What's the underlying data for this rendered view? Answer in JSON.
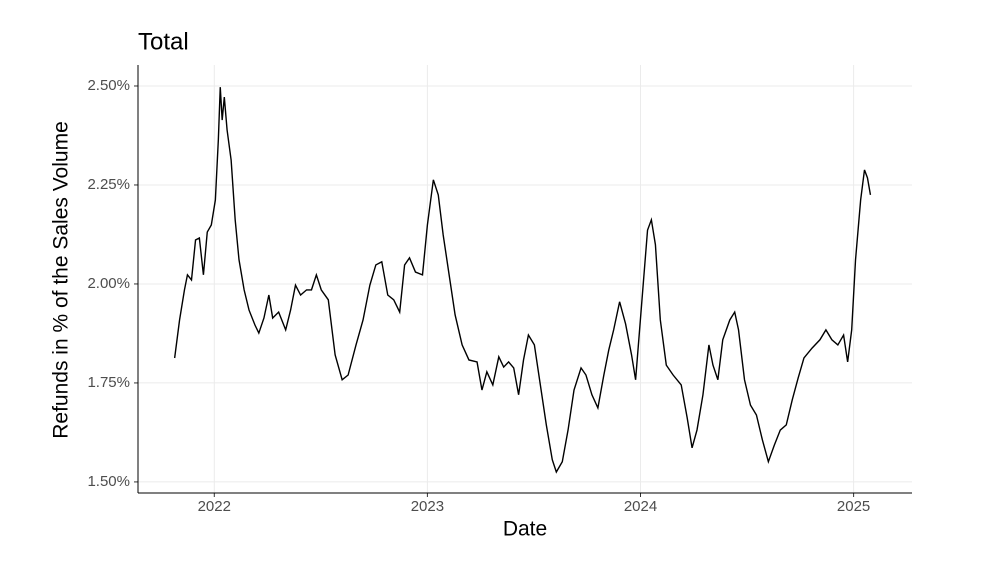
{
  "chart_data": {
    "type": "line",
    "title": "Total",
    "x_label": "Date",
    "y_label": "Refunds in % of the Sales Volume",
    "x": [
      2021.814,
      2021.837,
      2021.86,
      2021.874,
      2021.893,
      2021.912,
      2021.93,
      2021.949,
      2021.967,
      2021.986,
      2022.005,
      2022.019,
      2022.028,
      2022.037,
      2022.047,
      2022.06,
      2022.079,
      2022.098,
      2022.116,
      2022.14,
      2022.163,
      2022.191,
      2022.209,
      2022.233,
      2022.256,
      2022.274,
      2022.302,
      2022.335,
      2022.358,
      2022.381,
      2022.405,
      2022.433,
      2022.456,
      2022.479,
      2022.502,
      2022.535,
      2022.567,
      2022.6,
      2022.628,
      2022.665,
      2022.698,
      2022.73,
      2022.758,
      2022.786,
      2022.814,
      2022.842,
      2022.87,
      2022.893,
      2022.916,
      2022.944,
      2022.977,
      2023.0,
      2023.028,
      2023.051,
      2023.074,
      2023.102,
      2023.13,
      2023.163,
      2023.195,
      2023.233,
      2023.256,
      2023.279,
      2023.307,
      2023.335,
      2023.358,
      2023.381,
      2023.405,
      2023.428,
      2023.451,
      2023.474,
      2023.502,
      2023.53,
      2023.558,
      2023.586,
      2023.605,
      2023.633,
      2023.66,
      2023.688,
      2023.721,
      2023.744,
      2023.772,
      2023.8,
      2023.828,
      2023.851,
      2023.874,
      2023.902,
      2023.93,
      2023.958,
      2023.977,
      2024.005,
      2024.033,
      2024.051,
      2024.07,
      2024.093,
      2024.121,
      2024.153,
      2024.191,
      2024.219,
      2024.242,
      2024.265,
      2024.293,
      2024.321,
      2024.34,
      2024.363,
      2024.386,
      2024.419,
      2024.442,
      2024.46,
      2024.488,
      2024.516,
      2024.544,
      2024.572,
      2024.6,
      2024.628,
      2024.656,
      2024.684,
      2024.712,
      2024.74,
      2024.767,
      2024.805,
      2024.842,
      2024.87,
      2024.898,
      2024.926,
      2024.953,
      2024.972,
      2024.991,
      2025.009,
      2025.033,
      2025.051,
      2025.065,
      2025.079
    ],
    "series": [
      {
        "name": "Total",
        "color": "#000000",
        "values": [
          1.813,
          1.909,
          1.985,
          2.023,
          2.01,
          2.111,
          2.116,
          2.023,
          2.131,
          2.149,
          2.212,
          2.364,
          2.497,
          2.414,
          2.472,
          2.389,
          2.313,
          2.162,
          2.061,
          1.985,
          1.934,
          1.896,
          1.876,
          1.914,
          1.972,
          1.914,
          1.929,
          1.884,
          1.934,
          1.997,
          1.972,
          1.985,
          1.985,
          2.023,
          1.985,
          1.96,
          1.821,
          1.758,
          1.77,
          1.846,
          1.909,
          1.997,
          2.048,
          2.056,
          1.972,
          1.96,
          1.929,
          2.048,
          2.066,
          2.03,
          2.023,
          2.149,
          2.263,
          2.225,
          2.124,
          2.023,
          1.922,
          1.846,
          1.808,
          1.803,
          1.732,
          1.778,
          1.745,
          1.816,
          1.79,
          1.803,
          1.788,
          1.72,
          1.808,
          1.871,
          1.846,
          1.745,
          1.644,
          1.556,
          1.525,
          1.551,
          1.631,
          1.732,
          1.788,
          1.77,
          1.72,
          1.687,
          1.77,
          1.833,
          1.884,
          1.955,
          1.899,
          1.821,
          1.758,
          1.947,
          2.136,
          2.162,
          2.099,
          1.909,
          1.795,
          1.77,
          1.745,
          1.662,
          1.586,
          1.631,
          1.72,
          1.846,
          1.795,
          1.758,
          1.859,
          1.909,
          1.929,
          1.884,
          1.758,
          1.694,
          1.669,
          1.606,
          1.551,
          1.593,
          1.631,
          1.644,
          1.707,
          1.763,
          1.813,
          1.838,
          1.859,
          1.884,
          1.859,
          1.846,
          1.871,
          1.803,
          1.884,
          2.061,
          2.212,
          2.288,
          2.268,
          2.225
        ]
      }
    ],
    "xlim": [
      2021.642,
      2025.274
    ],
    "xticks": [
      2022,
      2023,
      2024,
      2025
    ],
    "ylim": [
      1.472,
      2.553
    ],
    "yticks": [
      {
        "value": 1.5,
        "label": "1.50%"
      },
      {
        "value": 1.75,
        "label": "1.75%"
      },
      {
        "value": 2.0,
        "label": "2.00%"
      },
      {
        "value": 2.25,
        "label": "2.25%"
      },
      {
        "value": 2.5,
        "label": "2.50%"
      }
    ],
    "grid": true
  }
}
